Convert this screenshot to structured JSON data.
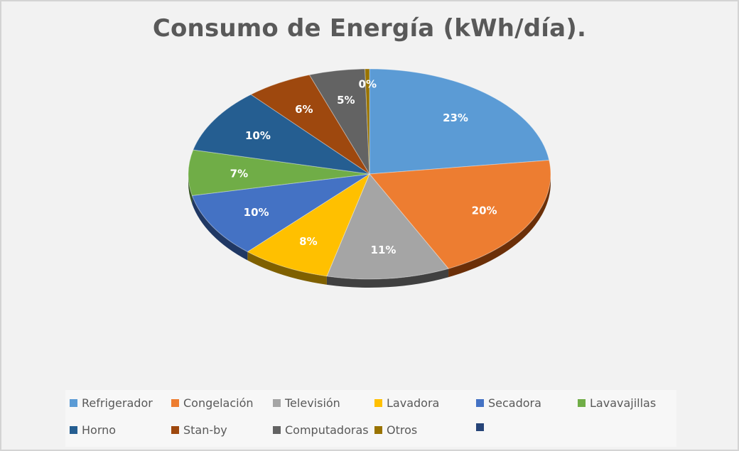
{
  "chart_data": {
    "type": "pie",
    "title": "Consumo de Energía (kWh/día).",
    "slices": [
      {
        "name": "Refrigerador",
        "value": 23,
        "label": "23%",
        "color": "#5b9bd5",
        "side": "#3f73a3"
      },
      {
        "name": "Congelación",
        "value": 20,
        "label": "20%",
        "color": "#ed7d31",
        "side": "#6b2f08"
      },
      {
        "name": "Televisión",
        "value": 11,
        "label": "11%",
        "color": "#a5a5a5",
        "side": "#404040"
      },
      {
        "name": "Lavadora",
        "value": 8,
        "label": "8%",
        "color": "#ffc000",
        "side": "#7f6000"
      },
      {
        "name": "Secadora",
        "value": 10,
        "label": "10%",
        "color": "#4472c4",
        "side": "#203864"
      },
      {
        "name": "Lavavajillas",
        "value": 7,
        "label": "7%",
        "color": "#70ad47",
        "side": "#375623"
      },
      {
        "name": "Horno",
        "value": 10,
        "label": "10%",
        "color": "#255e91",
        "side": "#10304d"
      },
      {
        "name": "Stan-by",
        "value": 6,
        "label": "6%",
        "color": "#9e480e",
        "side": "#4f2407"
      },
      {
        "name": "Computadoras",
        "value": 5,
        "label": "5%",
        "color": "#636363",
        "side": "#333333"
      },
      {
        "name": "Otros",
        "value": 0.4,
        "label": "0%",
        "color": "#997300",
        "side": "#4d3a00"
      }
    ],
    "legend_extra": [
      {
        "name": "",
        "color": "#264478"
      }
    ],
    "legend_position": "bottom"
  }
}
